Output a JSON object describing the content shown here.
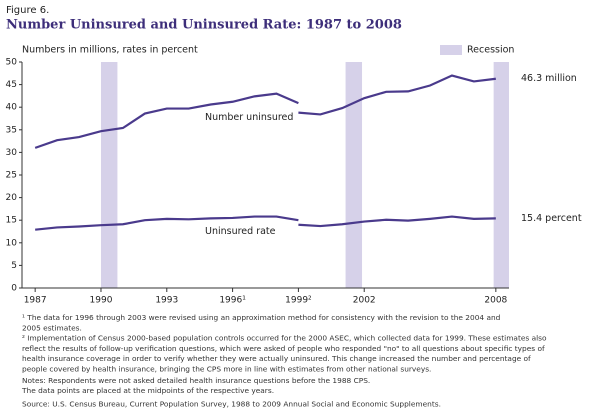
{
  "chart_data": {
    "type": "line",
    "figure_label": "Figure 6.",
    "title": "Number Uninsured and Uninsured Rate: 1987 to 2008",
    "subtitle": "Numbers in millions, rates in percent",
    "recession_label": "Recession",
    "recessions": [
      [
        1990.0,
        1990.75
      ],
      [
        2001.15,
        2001.9
      ],
      [
        2007.9,
        2008.6
      ]
    ],
    "recession_color": "#d6d1e9",
    "x": [
      1987,
      1988,
      1989,
      1990,
      1991,
      1992,
      1993,
      1994,
      1995,
      1996,
      1997,
      1998,
      1999,
      null,
      1999,
      2000,
      2001,
      2002,
      2003,
      2004,
      2005,
      2006,
      2007,
      2008
    ],
    "series": [
      {
        "name": "Number uninsured",
        "color": "#4a3a8c",
        "values": [
          31.0,
          32.7,
          33.4,
          34.7,
          35.4,
          38.6,
          39.7,
          39.7,
          40.6,
          41.2,
          42.4,
          43.0,
          40.9,
          null,
          38.8,
          38.4,
          39.8,
          42.0,
          43.4,
          43.5,
          44.8,
          47.0,
          45.7,
          46.3
        ],
        "value_labels": [
          null,
          null,
          null,
          null,
          null,
          null,
          null,
          null,
          null,
          null,
          null,
          null,
          null,
          null,
          null,
          null,
          null,
          null,
          null,
          null,
          null,
          null,
          null,
          "46.3 million"
        ]
      },
      {
        "name": "Uninsured rate",
        "color": "#4a3a8c",
        "values": [
          12.9,
          13.4,
          13.6,
          13.9,
          14.1,
          15.0,
          15.3,
          15.2,
          15.4,
          15.5,
          15.8,
          15.8,
          15.0,
          null,
          14.0,
          13.7,
          14.1,
          14.7,
          15.1,
          14.9,
          15.3,
          15.8,
          15.3,
          15.4
        ],
        "value_labels": [
          null,
          null,
          null,
          null,
          null,
          null,
          null,
          null,
          null,
          null,
          null,
          null,
          null,
          null,
          null,
          null,
          null,
          null,
          null,
          null,
          null,
          null,
          null,
          "15.4 percent"
        ]
      }
    ],
    "xlim": [
      1986.4,
      2008.6
    ],
    "xticks": [
      1987,
      1990,
      1993,
      {
        "value": 1996,
        "label": "1996¹"
      },
      {
        "value": 1999,
        "label": "1999²"
      },
      2002,
      2008
    ],
    "ylim": [
      0,
      50
    ],
    "yticks": [
      0,
      5,
      10,
      15,
      20,
      25,
      30,
      35,
      40,
      45,
      50
    ],
    "notes": [
      "¹ The data for 1996 through 2003 were revised using an approximation method for consistency with the revision to the 2004 and",
      "2005 estimates.",
      "² Implementation of Census 2000-based population controls occurred for the 2000 ASEC, which collected data for 1999.  These estimates also",
      "reflect the results of follow-up verification questions, which were asked of people who responded \"no\" to all questions about specific types of",
      "health insurance coverage in order to verify whether they were actually uninsured.  This change increased the number and percentage of",
      "people covered by health insurance, bringing the CPS more in line with estimates from other national surveys.",
      "Notes: Respondents were not asked detailed health insurance questions before the 1988 CPS.",
      "The data points are placed at the midpoints of the respective years.",
      "Source: U.S. Census Bureau, Current Population Survey, 1988 to 2009 Annual Social and Economic Supplements."
    ]
  }
}
